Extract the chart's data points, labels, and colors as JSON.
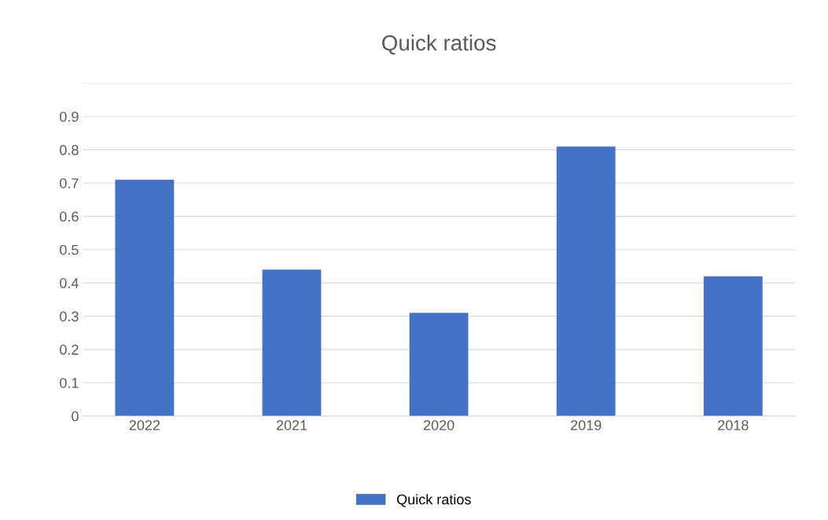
{
  "chart_data": {
    "type": "bar",
    "title": "Quick ratios",
    "categories": [
      "2022",
      "2021",
      "2020",
      "2019",
      "2018"
    ],
    "series": [
      {
        "name": "Quick ratios",
        "color": "#4472c4",
        "values": [
          0.71,
          0.44,
          0.31,
          0.81,
          0.42
        ]
      }
    ],
    "ylim": [
      0,
      1.0
    ],
    "yticks": [
      0,
      0.1,
      0.2,
      0.3,
      0.4,
      0.5,
      0.6,
      0.7,
      0.8,
      0.9,
      {
        "value": 1.0,
        "label": null
      }
    ],
    "grid": "y",
    "legend": "bottom"
  }
}
